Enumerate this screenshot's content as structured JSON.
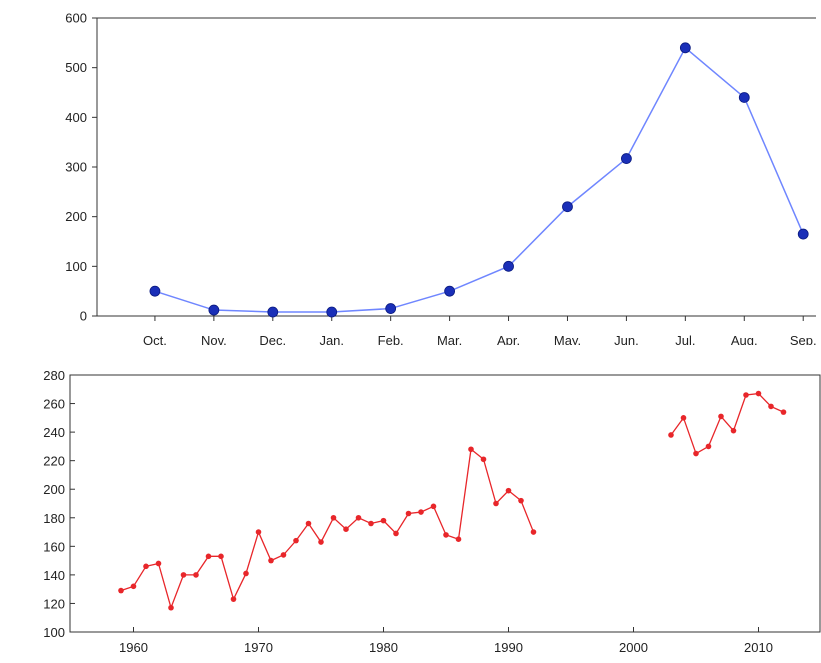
{
  "chart_data": [
    {
      "type": "line",
      "title": "",
      "xlabel": "",
      "ylabel": "",
      "categories": [
        "Oct.",
        "Nov.",
        "Dec.",
        "Jan.",
        "Feb.",
        "Mar.",
        "Apr.",
        "May.",
        "Jun.",
        "Jul.",
        "Aug.",
        "Sep."
      ],
      "series": [
        {
          "values": [
            50,
            12,
            8,
            8,
            15,
            50,
            100,
            220,
            317,
            540,
            440,
            165
          ],
          "color": "#6f86ff",
          "marker_color": "#1a2fb8",
          "marker": "circle"
        }
      ],
      "ylim": [
        0,
        600
      ],
      "yticks": [
        0,
        100,
        200,
        300,
        400,
        500,
        600
      ],
      "grid": false,
      "legend": "none"
    },
    {
      "type": "line",
      "title": "",
      "xlabel": "",
      "ylabel": "",
      "xlim": [
        1955,
        2015
      ],
      "xticks": [
        1960,
        1970,
        1980,
        1990,
        2000,
        2010
      ],
      "ylim": [
        100,
        280
      ],
      "yticks": [
        100,
        120,
        140,
        160,
        180,
        200,
        220,
        240,
        260,
        280
      ],
      "series": [
        {
          "segments": [
            {
              "x": [
                1959,
                1960,
                1961,
                1962,
                1963,
                1964,
                1965,
                1966,
                1967,
                1968,
                1969,
                1970,
                1971,
                1972,
                1973,
                1974,
                1975,
                1976,
                1977,
                1978,
                1979,
                1980,
                1981,
                1982,
                1983,
                1984,
                1985,
                1986,
                1987,
                1988,
                1989,
                1990,
                1991,
                1992
              ],
              "y": [
                129,
                132,
                146,
                148,
                117,
                140,
                140,
                153,
                153,
                123,
                141,
                170,
                150,
                154,
                164,
                176,
                163,
                180,
                172,
                180,
                176,
                178,
                169,
                183,
                184,
                188,
                168,
                165,
                228,
                221,
                190,
                199,
                192,
                170
              ]
            },
            {
              "x": [
                2003,
                2004,
                2005,
                2006,
                2007,
                2008,
                2009,
                2010,
                2011,
                2012
              ],
              "y": [
                238,
                250,
                225,
                230,
                251,
                241,
                266,
                267,
                258,
                254
              ]
            }
          ],
          "color": "#e8262a",
          "marker": "dot"
        }
      ],
      "grid": false,
      "legend": "none"
    }
  ]
}
